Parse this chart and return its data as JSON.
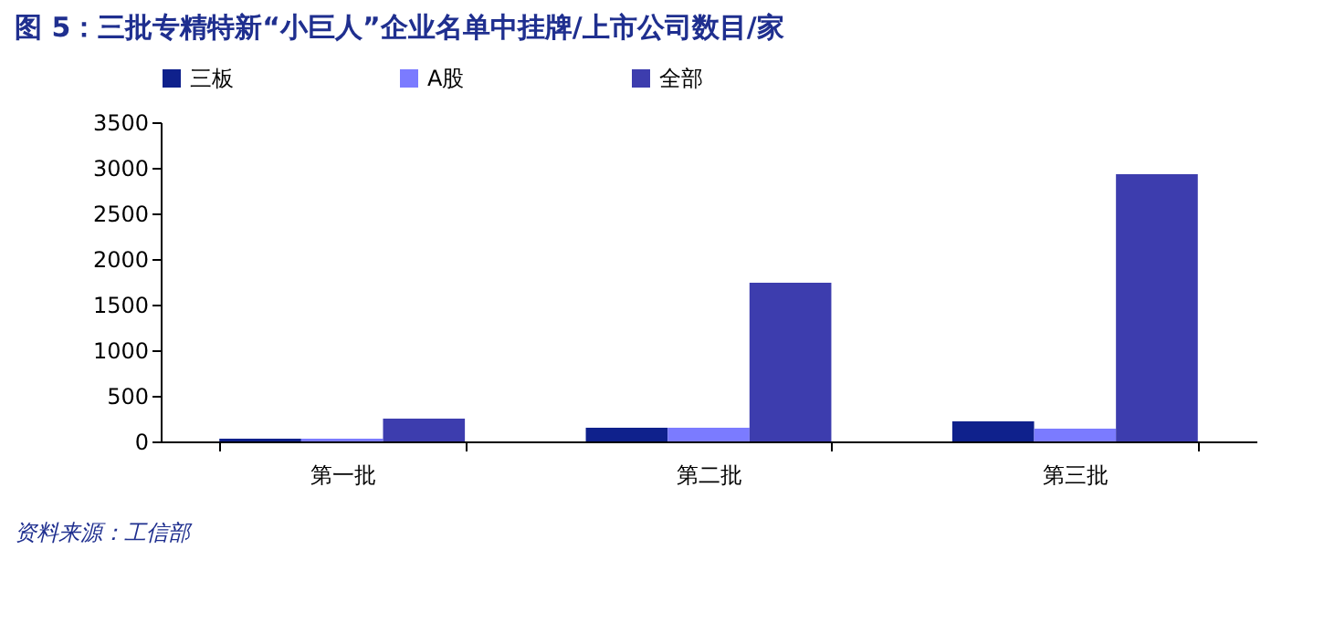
{
  "chart_data": {
    "type": "bar",
    "title": "图 5：三批专精特新“小巨人”企业名单中挂牌/上市公司数目/家",
    "categories": [
      "第一批",
      "第二批",
      "第三批"
    ],
    "series": [
      {
        "name": "三板",
        "color": "#0f218c",
        "values": [
          30,
          150,
          220
        ]
      },
      {
        "name": "A股",
        "color": "#7b7bff",
        "values": [
          30,
          150,
          140
        ]
      },
      {
        "name": "全部",
        "color": "#3d3dae",
        "values": [
          250,
          1740,
          2930
        ]
      }
    ],
    "ylim": [
      0,
      3500
    ],
    "yticks": [
      0,
      500,
      1000,
      1500,
      2000,
      2500,
      3000,
      3500
    ],
    "grid": false,
    "legend": "top",
    "annotations": [
      "资料来源：工信部"
    ]
  }
}
